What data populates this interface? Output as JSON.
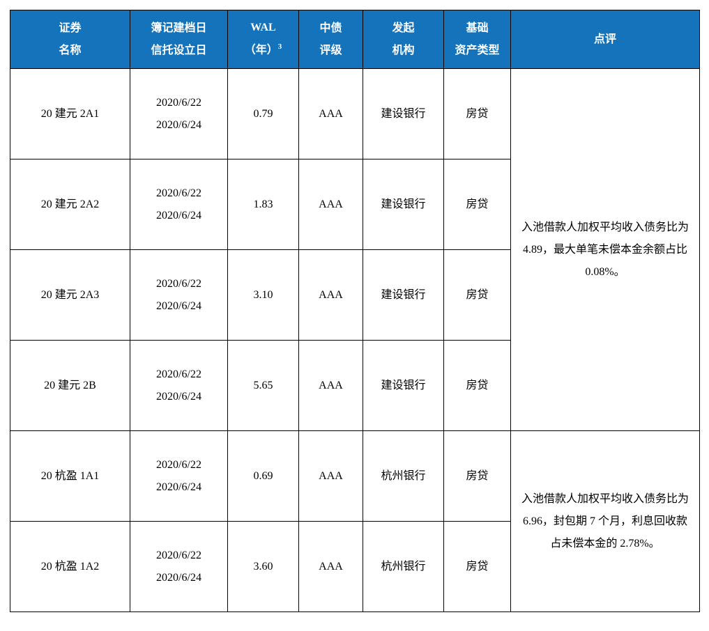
{
  "table": {
    "header_bg": "#1573bc",
    "header_fg": "#ffffff",
    "border_color": "#000000",
    "columns": [
      {
        "line1": "证券",
        "line2": "名称"
      },
      {
        "line1": "簿记建档日",
        "line2": "信托设立日"
      },
      {
        "line1": "WAL",
        "line2_prefix": "（年）",
        "line2_sup": "3"
      },
      {
        "line1": "中债",
        "line2": "评级"
      },
      {
        "line1": "发起",
        "line2": "机构"
      },
      {
        "line1": "基础",
        "line2": "资产类型"
      },
      {
        "line1": "点评"
      }
    ],
    "groups": [
      {
        "comment": "入池借款人加权平均收入债务比为4.89，最大单笔未偿本金余额占比0.08%。",
        "rows": [
          {
            "name": "20 建元 2A1",
            "date1": "2020/6/22",
            "date2": "2020/6/24",
            "wal": "0.79",
            "rating": "AAA",
            "issuer": "建设银行",
            "asset": "房贷"
          },
          {
            "name": "20 建元 2A2",
            "date1": "2020/6/22",
            "date2": "2020/6/24",
            "wal": "1.83",
            "rating": "AAA",
            "issuer": "建设银行",
            "asset": "房贷"
          },
          {
            "name": "20 建元 2A3",
            "date1": "2020/6/22",
            "date2": "2020/6/24",
            "wal": "3.10",
            "rating": "AAA",
            "issuer": "建设银行",
            "asset": "房贷"
          },
          {
            "name": "20 建元 2B",
            "date1": "2020/6/22",
            "date2": "2020/6/24",
            "wal": "5.65",
            "rating": "AAA",
            "issuer": "建设银行",
            "asset": "房贷"
          }
        ]
      },
      {
        "comment": "入池借款人加权平均收入债务比为6.96，封包期 7 个月，利息回收款占未偿本金的 2.78%。",
        "rows": [
          {
            "name": "20 杭盈 1A1",
            "date1": "2020/6/22",
            "date2": "2020/6/24",
            "wal": "0.69",
            "rating": "AAA",
            "issuer": "杭州银行",
            "asset": "房贷"
          },
          {
            "name": "20 杭盈 1A2",
            "date1": "2020/6/22",
            "date2": "2020/6/24",
            "wal": "3.60",
            "rating": "AAA",
            "issuer": "杭州银行",
            "asset": "房贷"
          }
        ]
      }
    ]
  }
}
